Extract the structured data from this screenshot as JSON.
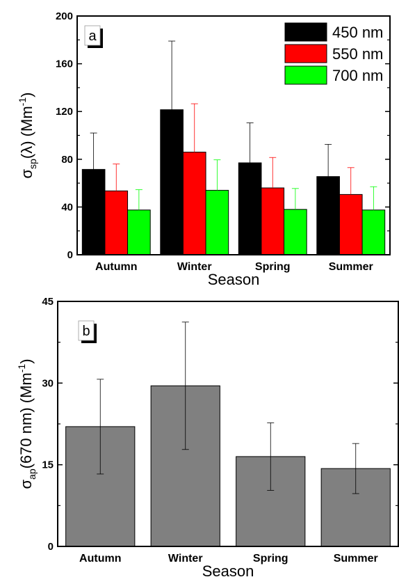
{
  "chart_data": [
    {
      "type": "bar",
      "panel_label": "a",
      "categories": [
        "Autumn",
        "Winter",
        "Spring",
        "Summer"
      ],
      "series": [
        {
          "name": "450 nm",
          "color": "#000000",
          "error_color": "#000000",
          "values": [
            71.5,
            121.5,
            77,
            65.5
          ],
          "errors": [
            30.5,
            57.5,
            33.5,
            27
          ]
        },
        {
          "name": "550 nm",
          "color": "#ff0000",
          "error_color": "#ff0000",
          "values": [
            53.5,
            86,
            56,
            50.5
          ],
          "errors": [
            22.5,
            40.5,
            25.5,
            22.5
          ]
        },
        {
          "name": "700 nm",
          "color": "#00ff00",
          "error_color": "#00ff00",
          "values": [
            37.5,
            54,
            38,
            37.5
          ],
          "errors": [
            17,
            25.5,
            17.5,
            19.5
          ]
        }
      ],
      "ylabel": {
        "main": "σ",
        "sub": "sp",
        "rest": "(λ) (Mm",
        "sup": "-1",
        "end": ")"
      },
      "xlabel": "Season",
      "ylim": [
        0,
        200
      ],
      "yticks": [
        "0",
        "40",
        "80",
        "120",
        "160",
        "200"
      ],
      "ytick_values": [
        0,
        40,
        80,
        120,
        160,
        200
      ],
      "legend_position": "top-right",
      "grid": false
    },
    {
      "type": "bar",
      "panel_label": "b",
      "categories": [
        "Autumn",
        "Winter",
        "Spring",
        "Summer"
      ],
      "series": [
        {
          "color": "#808080",
          "error_color": "#000000",
          "values": [
            22,
            29.5,
            16.5,
            14.3
          ],
          "errors": [
            8.7,
            11.7,
            6.2,
            4.6
          ]
        }
      ],
      "ylabel": {
        "main": "σ",
        "sub": "ap",
        "rest": "(670 nm) (Mm",
        "sup": "-1",
        "end": ")"
      },
      "xlabel": "Season",
      "ylim": [
        0,
        45
      ],
      "yticks": [
        "0",
        "15",
        "30",
        "45"
      ],
      "ytick_values": [
        0,
        15,
        30,
        45
      ],
      "grid": false
    }
  ]
}
